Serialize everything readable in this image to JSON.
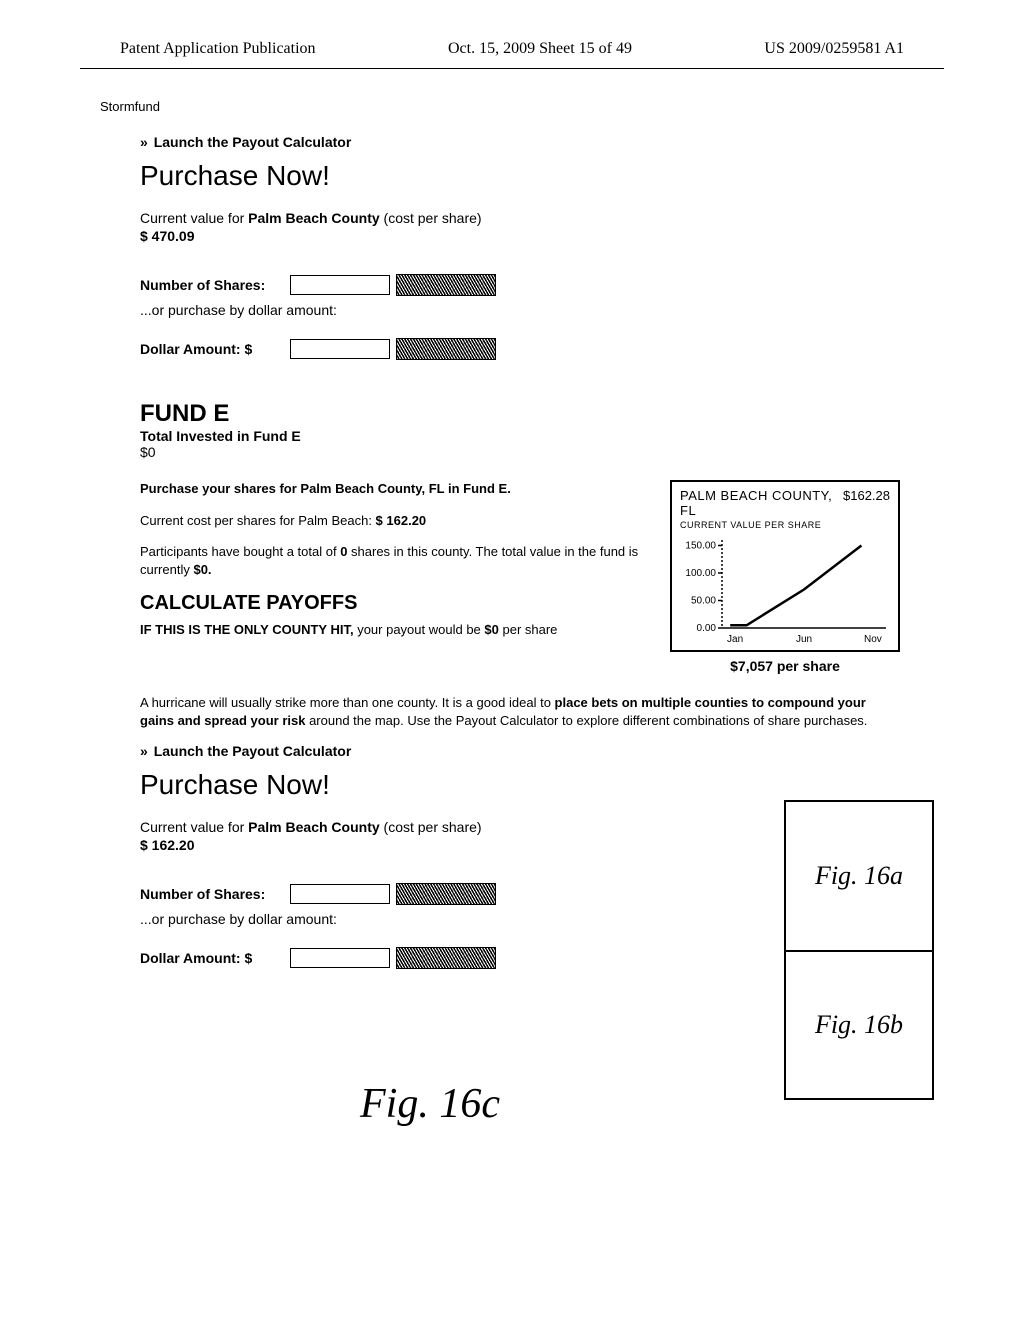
{
  "header": {
    "left": "Patent Application Publication",
    "center": "Oct. 15, 2009   Sheet 15 of 49",
    "right": "US 2009/0259581 A1"
  },
  "app_name": "Stormfund",
  "section1": {
    "link": "Launch the Payout Calculator",
    "title": "Purchase Now!",
    "current_label_prefix": "Current value for ",
    "county": "Palm Beach County",
    "current_label_suffix": " (cost per share)",
    "price": "$ 470.09",
    "shares_label": "Number of Shares:",
    "or_text": "...or purchase by dollar amount:",
    "dollar_label": "Dollar Amount:  $"
  },
  "fund_e": {
    "heading": "FUND E",
    "sub": "Total Invested in Fund E",
    "amount": "$0",
    "purchase_line": "Purchase your shares for Palm Beach County, FL in Fund E.",
    "cost_line_prefix": "Current cost per shares for Palm Beach: ",
    "cost_value": "$ 162.20",
    "participants_1": "Participants have bought a total of ",
    "participants_bold1": "0",
    "participants_2": " shares in this county.  The total value in the fund is currently ",
    "participants_bold2": "$0.",
    "calc_title": "CALCULATE PAYOFFS",
    "hit_prefix": "IF THIS IS THE ONLY COUNTY HIT,",
    "hit_suffix": " your payout would be",
    "hit_amount": "$0",
    "hit_per": " per share"
  },
  "chart": {
    "county": "PALM BEACH COUNTY, FL",
    "price": "$162.28",
    "subtitle": "CURRENT VALUE PER SHARE",
    "yticks": [
      "150.00",
      "100.00",
      "50.00",
      "0.00"
    ],
    "xticks": [
      "Jan",
      "Jun",
      "Nov"
    ],
    "per_share": "$7,057 per share",
    "ylim_max": 160,
    "line_points": [
      {
        "x": 0.05,
        "y": 5
      },
      {
        "x": 0.15,
        "y": 5
      },
      {
        "x": 0.5,
        "y": 70
      },
      {
        "x": 0.85,
        "y": 150
      }
    ],
    "axis_color": "#000000",
    "line_color": "#000000",
    "tick_font_size": 10
  },
  "advice": {
    "t1": "A hurricane will usually strike more than one county.  It is a good ideal to ",
    "bold": "place bets on multiple counties to compound your gains and spread your risk",
    "t2": " around the map.  Use the Payout Calculator to explore different combinations of share purchases."
  },
  "section2": {
    "link": "Launch the Payout Calculator",
    "title": "Purchase Now!",
    "current_label_prefix": "Current value for ",
    "county": "Palm Beach County",
    "current_label_suffix": " (cost per share)",
    "price": "$ 162.20",
    "shares_label": "Number of Shares:",
    "or_text": "...or purchase by dollar amount:",
    "dollar_label": "Dollar Amount:  $"
  },
  "figures": {
    "a": "Fig. 16a",
    "b": "Fig. 16b",
    "c": "Fig. 16c"
  }
}
